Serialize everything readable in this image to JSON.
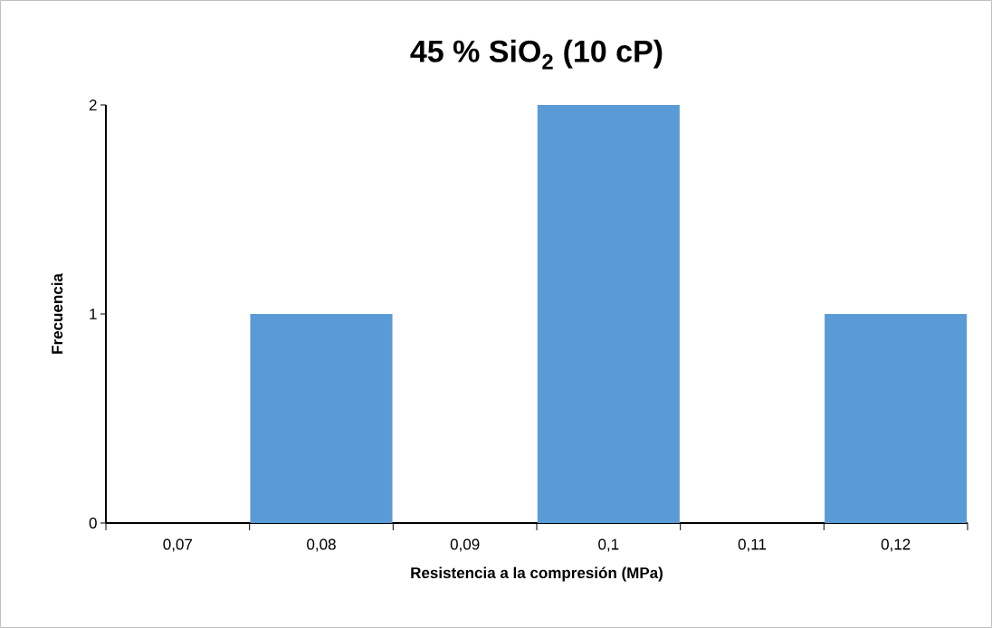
{
  "chart_data": {
    "type": "bar",
    "title": "45 % SiO$_{2}$ (10 cP)",
    "xlabel": "Resistencia a la compresión (MPa)",
    "ylabel": "Frecuencia",
    "categories": [
      "0,07",
      "0,08",
      "0,09",
      "0,1",
      "0,11",
      "0,12"
    ],
    "values": [
      0,
      1,
      0,
      2,
      0,
      1
    ],
    "color": "#5b9bd5",
    "ylim": [
      0,
      2
    ],
    "yticks": [
      0,
      1,
      2
    ],
    "grid": false
  }
}
